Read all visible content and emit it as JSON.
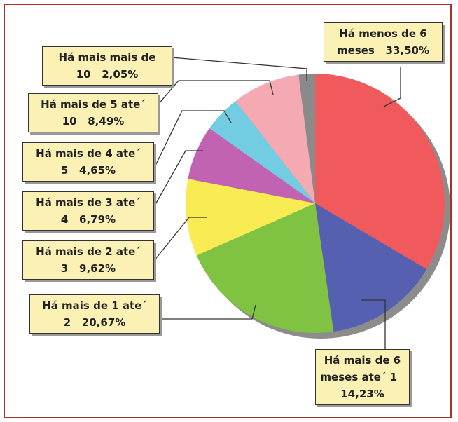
{
  "chart_data": {
    "type": "pie",
    "categories": [
      "Há menos de 6 meses",
      "Há mais de 6 meses ate´ 1",
      "Há mais de 1 ate´ 2",
      "Há mais de 2 ate´ 3",
      "Há mais de 3 ate´ 4",
      "Há mais de 4 ate´ 5",
      "Há mais de 5 ate´ 10",
      "Há mais mais de 10"
    ],
    "values": [
      33.5,
      14.23,
      20.67,
      9.62,
      6.79,
      4.65,
      8.49,
      2.05
    ],
    "value_labels": [
      "33,50%",
      "14,23%",
      "20,67%",
      "9,62%",
      "6,79%",
      "4,65%",
      "8,49%",
      "2,05%"
    ],
    "colors": [
      "#f05a5c",
      "#5560b0",
      "#80c242",
      "#f8ec52",
      "#c262b2",
      "#72cde2",
      "#f5a9b2",
      "#8a8a8a"
    ]
  }
}
